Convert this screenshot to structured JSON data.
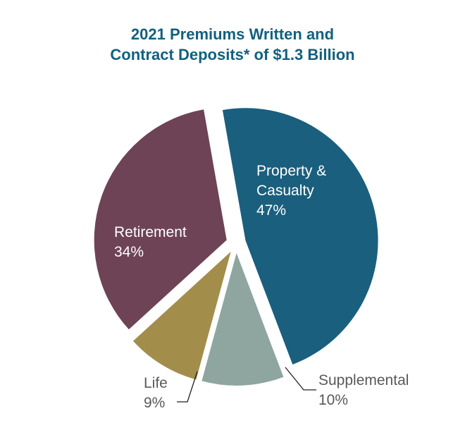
{
  "title": {
    "line1": "2021 Premiums Written and",
    "line2": "Contract Deposits* of $1.3 Billion",
    "color": "#11607F"
  },
  "chart_data": {
    "type": "pie",
    "title": "2021 Premiums Written and Contract Deposits* of $1.3 Billion",
    "legend_position": "none",
    "start_angle_deg": -10,
    "slices": [
      {
        "label": "Property & Casualty",
        "value": 47,
        "pct_label": "47%",
        "color": "#1A5F7D",
        "text_color": "#FFFFFF",
        "label_placement": "inside"
      },
      {
        "label": "Supplemental",
        "value": 10,
        "pct_label": "10%",
        "color": "#8FA6A0",
        "text_color": "#58595B",
        "label_placement": "outside"
      },
      {
        "label": "Life",
        "value": 9,
        "pct_label": "9%",
        "color": "#A38D4B",
        "text_color": "#58595B",
        "label_placement": "outside"
      },
      {
        "label": "Retirement",
        "value": 34,
        "pct_label": "34%",
        "color": "#6E4356",
        "text_color": "#FFFFFF",
        "label_placement": "inside"
      }
    ],
    "leader_line_color": "#231F20"
  }
}
